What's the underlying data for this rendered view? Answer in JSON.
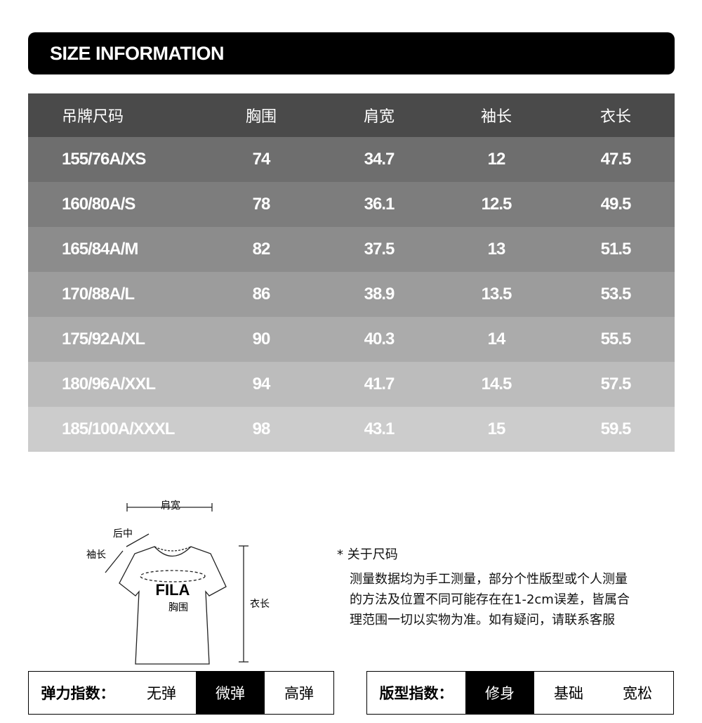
{
  "title": "SIZE INFORMATION",
  "table": {
    "headers": [
      "吊牌尺码",
      "胸围",
      "肩宽",
      "袖长",
      "衣长"
    ],
    "rows": [
      [
        "155/76A/XS",
        "74",
        "34.7",
        "12",
        "47.5"
      ],
      [
        "160/80A/S",
        "78",
        "36.1",
        "12.5",
        "49.5"
      ],
      [
        "165/84A/M",
        "82",
        "37.5",
        "13",
        "51.5"
      ],
      [
        "170/88A/L",
        "86",
        "38.9",
        "13.5",
        "53.5"
      ],
      [
        "175/92A/XL",
        "90",
        "40.3",
        "14",
        "55.5"
      ],
      [
        "180/96A/XXL",
        "94",
        "41.7",
        "14.5",
        "57.5"
      ],
      [
        "185/100A/XXXL",
        "98",
        "43.1",
        "15",
        "59.5"
      ]
    ],
    "row_colors": [
      "#6e6e6e",
      "#7d7d7d",
      "#8c8c8c",
      "#9c9c9c",
      "#ababab",
      "#bcbcbc",
      "#cccccc"
    ]
  },
  "diagram": {
    "shoulder": "肩宽",
    "back_center": "后中",
    "sleeve": "袖长",
    "chest": "胸围",
    "length": "衣长",
    "logo": "FILA"
  },
  "note": {
    "title": "* 关于尺码",
    "lines": [
      "测量数据均为手工测量，部分个性版型或个人测量",
      "的方法及位置不同可能存在在1-2cm误差，皆属合",
      "理范围一切以实物为准。如有疑问，请联系客服"
    ]
  },
  "elasticity": {
    "label": "弹力指数：",
    "options": [
      "无弹",
      "微弹",
      "高弹"
    ],
    "selected": "微弹"
  },
  "fit": {
    "label": "版型指数：",
    "options": [
      "修身",
      "基础",
      "宽松"
    ],
    "selected": "修身"
  }
}
